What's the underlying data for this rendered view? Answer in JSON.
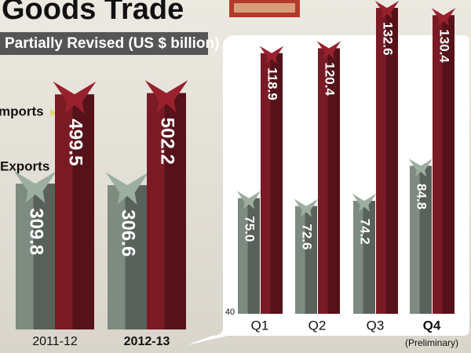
{
  "chart_data": [
    {
      "type": "bar",
      "title": "Goods Trade",
      "subtitle": "Partially Revised (US $ billion)",
      "categories": [
        "2011-12",
        "2012-13"
      ],
      "highlight_index": 1,
      "series": [
        {
          "name": "Exports",
          "color": "#7d8b80",
          "values": [
            309.8,
            306.6
          ]
        },
        {
          "name": "mports",
          "color": "#7a1a24",
          "values": [
            499.5,
            502.2
          ]
        }
      ],
      "ylim": [
        0,
        700
      ]
    },
    {
      "type": "bar",
      "categories": [
        "Q1",
        "Q2",
        "Q3",
        "Q4"
      ],
      "highlight_index": 3,
      "category_note": "(Preliminary)",
      "series": [
        {
          "color": "#7d8b80",
          "values": [
            75.0,
            72.6,
            74.2,
            84.8
          ],
          "value_labels": [
            "75.0",
            "72.6",
            "74.2",
            "84.8"
          ]
        },
        {
          "color": "#7a1a24",
          "values": [
            118.9,
            120.4,
            132.6,
            130.4
          ]
        }
      ],
      "ylim": [
        40,
        135
      ],
      "yticks": [
        40
      ]
    }
  ]
}
